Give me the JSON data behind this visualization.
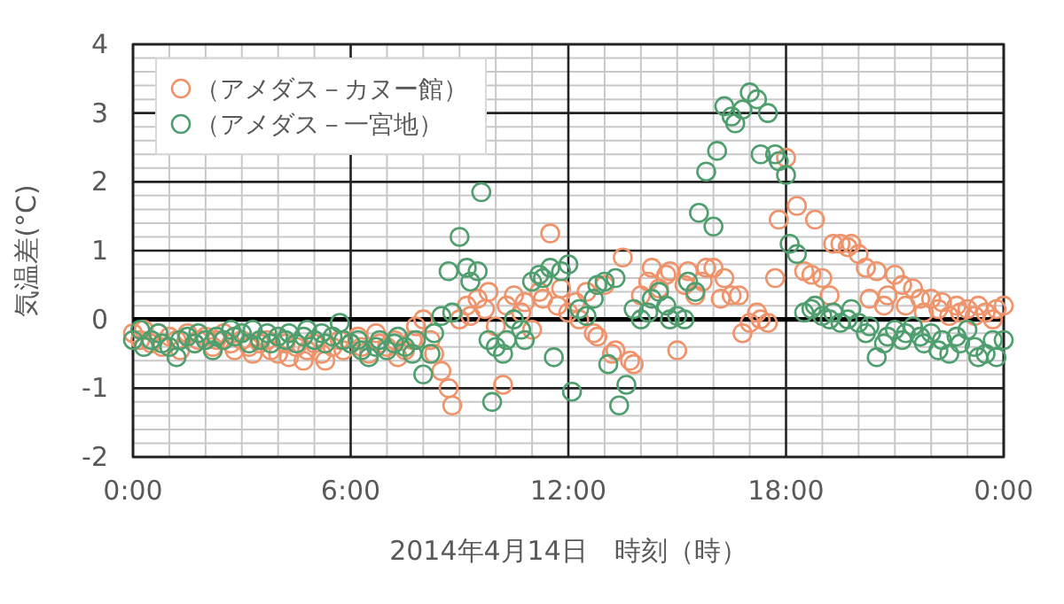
{
  "chart_data": {
    "type": "scatter",
    "xlabel": "2014年4月14日　時刻（時）",
    "ylabel": "気温差(°C)",
    "xlim": [
      0,
      24
    ],
    "ylim": [
      -2,
      4
    ],
    "xticks": [
      {
        "value": 0,
        "label": "0:00"
      },
      {
        "value": 6,
        "label": "6:00"
      },
      {
        "value": 12,
        "label": "12:00"
      },
      {
        "value": 18,
        "label": "18:00"
      },
      {
        "value": 24,
        "label": "0:00"
      }
    ],
    "yticks": [
      -2,
      -1,
      0,
      1,
      2,
      3,
      4
    ],
    "grid": true,
    "legend": "top left",
    "marker": "circle",
    "ref_lines": [
      {
        "axis": "y",
        "value": 0,
        "color": "#000000"
      }
    ],
    "series": [
      {
        "name": "（アメダス－カヌー館）",
        "color": "#f0926a",
        "x": [
          0.0,
          0.2,
          0.3,
          0.5,
          0.7,
          0.8,
          1.0,
          1.2,
          1.3,
          1.5,
          1.7,
          1.8,
          2.0,
          2.2,
          2.3,
          2.5,
          2.7,
          2.8,
          3.0,
          3.2,
          3.3,
          3.5,
          3.7,
          3.8,
          4.0,
          4.2,
          4.3,
          4.5,
          4.7,
          4.8,
          5.0,
          5.2,
          5.3,
          5.5,
          5.7,
          5.8,
          6.0,
          6.2,
          6.3,
          6.5,
          6.7,
          6.8,
          7.0,
          7.2,
          7.3,
          7.5,
          7.7,
          7.8,
          8.0,
          8.2,
          8.3,
          8.5,
          8.7,
          8.8,
          9.0,
          9.2,
          9.3,
          9.5,
          9.7,
          9.8,
          10.0,
          10.2,
          10.3,
          10.5,
          10.7,
          10.8,
          11.0,
          11.2,
          11.3,
          11.5,
          11.7,
          11.8,
          12.0,
          12.2,
          12.3,
          12.5,
          12.7,
          12.8,
          13.0,
          13.2,
          13.3,
          13.5,
          13.7,
          13.8,
          14.0,
          14.2,
          14.3,
          14.5,
          14.7,
          14.8,
          15.0,
          15.2,
          15.3,
          15.5,
          15.7,
          15.8,
          16.0,
          16.2,
          16.3,
          16.5,
          16.7,
          16.8,
          17.0,
          17.2,
          17.3,
          17.5,
          17.7,
          17.8,
          18.0,
          18.3,
          18.5,
          18.7,
          18.8,
          19.0,
          19.2,
          19.3,
          19.5,
          19.7,
          19.8,
          20.0,
          20.2,
          20.3,
          20.5,
          20.7,
          20.8,
          21.0,
          21.2,
          21.3,
          21.5,
          21.7,
          21.8,
          22.0,
          22.2,
          22.3,
          22.5,
          22.7,
          22.8,
          23.0,
          23.2,
          23.3,
          23.5,
          23.7,
          23.8,
          24.0
        ],
        "values": [
          -0.2,
          -0.3,
          -0.15,
          -0.35,
          -0.2,
          -0.4,
          -0.25,
          -0.3,
          -0.45,
          -0.2,
          -0.35,
          -0.3,
          -0.25,
          -0.4,
          -0.3,
          -0.2,
          -0.35,
          -0.45,
          -0.3,
          -0.4,
          -0.5,
          -0.35,
          -0.3,
          -0.45,
          -0.5,
          -0.35,
          -0.55,
          -0.4,
          -0.6,
          -0.45,
          -0.35,
          -0.5,
          -0.6,
          -0.4,
          -0.3,
          -0.45,
          -0.35,
          -0.25,
          -0.4,
          -0.5,
          -0.2,
          -0.35,
          -0.4,
          -0.3,
          -0.55,
          -0.45,
          -0.3,
          -0.1,
          0.0,
          -0.3,
          -0.5,
          -0.75,
          -1.0,
          -1.25,
          0.0,
          0.2,
          0.05,
          0.3,
          0.15,
          0.4,
          -0.1,
          -0.95,
          0.2,
          0.35,
          0.1,
          0.25,
          -0.15,
          0.4,
          0.3,
          1.25,
          0.2,
          0.45,
          0.1,
          0.25,
          0.0,
          0.4,
          -0.2,
          -0.25,
          0.5,
          -0.5,
          -0.45,
          0.9,
          -0.6,
          -0.65,
          0.35,
          0.55,
          0.75,
          0.45,
          0.65,
          0.7,
          -0.45,
          0.5,
          0.7,
          0.35,
          0.55,
          0.75,
          0.75,
          0.3,
          0.6,
          0.35,
          0.35,
          -0.2,
          -0.05,
          0.1,
          0.0,
          -0.05,
          0.6,
          1.45,
          2.35,
          1.65,
          0.7,
          0.65,
          1.45,
          0.6,
          0.35,
          1.1,
          1.1,
          1.05,
          1.1,
          0.95,
          0.75,
          0.3,
          0.7,
          0.2,
          0.35,
          0.65,
          0.5,
          0.2,
          0.45,
          0.3,
          0.1,
          0.3,
          0.15,
          0.25,
          0.05,
          0.2,
          0.1,
          0.15,
          0.05,
          0.2,
          0.1,
          0.0,
          0.15,
          0.2
        ]
      },
      {
        "name": "（アメダス－一宮地）",
        "color": "#4f9e6e",
        "x": [
          0.0,
          0.2,
          0.3,
          0.5,
          0.7,
          0.8,
          1.0,
          1.2,
          1.3,
          1.5,
          1.7,
          1.8,
          2.0,
          2.2,
          2.3,
          2.5,
          2.7,
          2.8,
          3.0,
          3.2,
          3.3,
          3.5,
          3.7,
          3.8,
          4.0,
          4.2,
          4.3,
          4.5,
          4.7,
          4.8,
          5.0,
          5.2,
          5.3,
          5.5,
          5.7,
          5.8,
          6.0,
          6.2,
          6.3,
          6.5,
          6.7,
          6.8,
          7.0,
          7.2,
          7.3,
          7.5,
          7.7,
          7.8,
          8.0,
          8.2,
          8.3,
          8.5,
          8.7,
          8.8,
          9.0,
          9.2,
          9.3,
          9.5,
          9.6,
          9.8,
          9.9,
          10.0,
          10.2,
          10.3,
          10.5,
          10.7,
          10.8,
          11.0,
          11.2,
          11.3,
          11.5,
          11.6,
          11.8,
          12.0,
          12.1,
          12.3,
          12.5,
          12.7,
          12.8,
          13.0,
          13.1,
          13.3,
          13.4,
          13.6,
          13.8,
          14.0,
          14.2,
          14.3,
          14.5,
          14.7,
          14.8,
          15.0,
          15.2,
          15.3,
          15.5,
          15.6,
          15.8,
          16.0,
          16.1,
          16.3,
          16.5,
          16.6,
          16.8,
          17.0,
          17.2,
          17.3,
          17.5,
          17.7,
          17.8,
          18.0,
          18.1,
          18.3,
          18.5,
          18.7,
          18.8,
          19.0,
          19.2,
          19.3,
          19.5,
          19.7,
          19.8,
          20.0,
          20.2,
          20.3,
          20.5,
          20.7,
          20.8,
          21.0,
          21.2,
          21.3,
          21.5,
          21.7,
          21.8,
          22.0,
          22.2,
          22.3,
          22.5,
          22.7,
          22.8,
          23.0,
          23.2,
          23.3,
          23.5,
          23.7,
          23.8,
          24.0
        ],
        "values": [
          -0.3,
          -0.15,
          -0.4,
          -0.3,
          -0.2,
          -0.35,
          -0.4,
          -0.55,
          -0.3,
          -0.25,
          -0.35,
          -0.2,
          -0.3,
          -0.45,
          -0.25,
          -0.3,
          -0.15,
          -0.25,
          -0.2,
          -0.35,
          -0.15,
          -0.3,
          -0.2,
          -0.35,
          -0.25,
          -0.3,
          -0.2,
          -0.35,
          -0.25,
          -0.15,
          -0.3,
          -0.2,
          -0.35,
          -0.25,
          -0.05,
          -0.3,
          -0.35,
          -0.3,
          -0.45,
          -0.55,
          -0.4,
          -0.3,
          -0.45,
          -0.35,
          -0.25,
          -0.4,
          -0.5,
          -0.3,
          -0.8,
          -0.5,
          -0.2,
          0.05,
          0.7,
          0.1,
          1.2,
          0.75,
          0.55,
          0.7,
          1.85,
          -0.3,
          -1.2,
          -0.4,
          -0.5,
          -0.3,
          0.0,
          -0.15,
          -0.3,
          0.55,
          0.65,
          0.6,
          0.75,
          -0.55,
          0.7,
          0.8,
          -1.05,
          0.15,
          0.05,
          0.3,
          0.5,
          0.55,
          -0.65,
          0.6,
          -1.25,
          -0.95,
          0.15,
          0.0,
          0.1,
          0.3,
          0.4,
          0.2,
          0.0,
          0.05,
          0.0,
          0.55,
          0.4,
          1.55,
          2.15,
          1.35,
          2.45,
          3.1,
          2.95,
          2.85,
          3.05,
          3.3,
          3.2,
          2.4,
          3.0,
          2.4,
          2.3,
          2.1,
          1.1,
          0.95,
          0.1,
          0.15,
          0.2,
          0.05,
          0.0,
          0.1,
          -0.05,
          0.0,
          0.15,
          -0.05,
          -0.2,
          -0.1,
          -0.55,
          -0.35,
          -0.25,
          -0.15,
          -0.3,
          -0.2,
          -0.1,
          -0.25,
          -0.35,
          -0.2,
          -0.45,
          -0.3,
          -0.5,
          -0.25,
          -0.35,
          -0.15,
          -0.4,
          -0.55,
          -0.5,
          -0.3,
          -0.55,
          -0.3
        ]
      }
    ]
  }
}
